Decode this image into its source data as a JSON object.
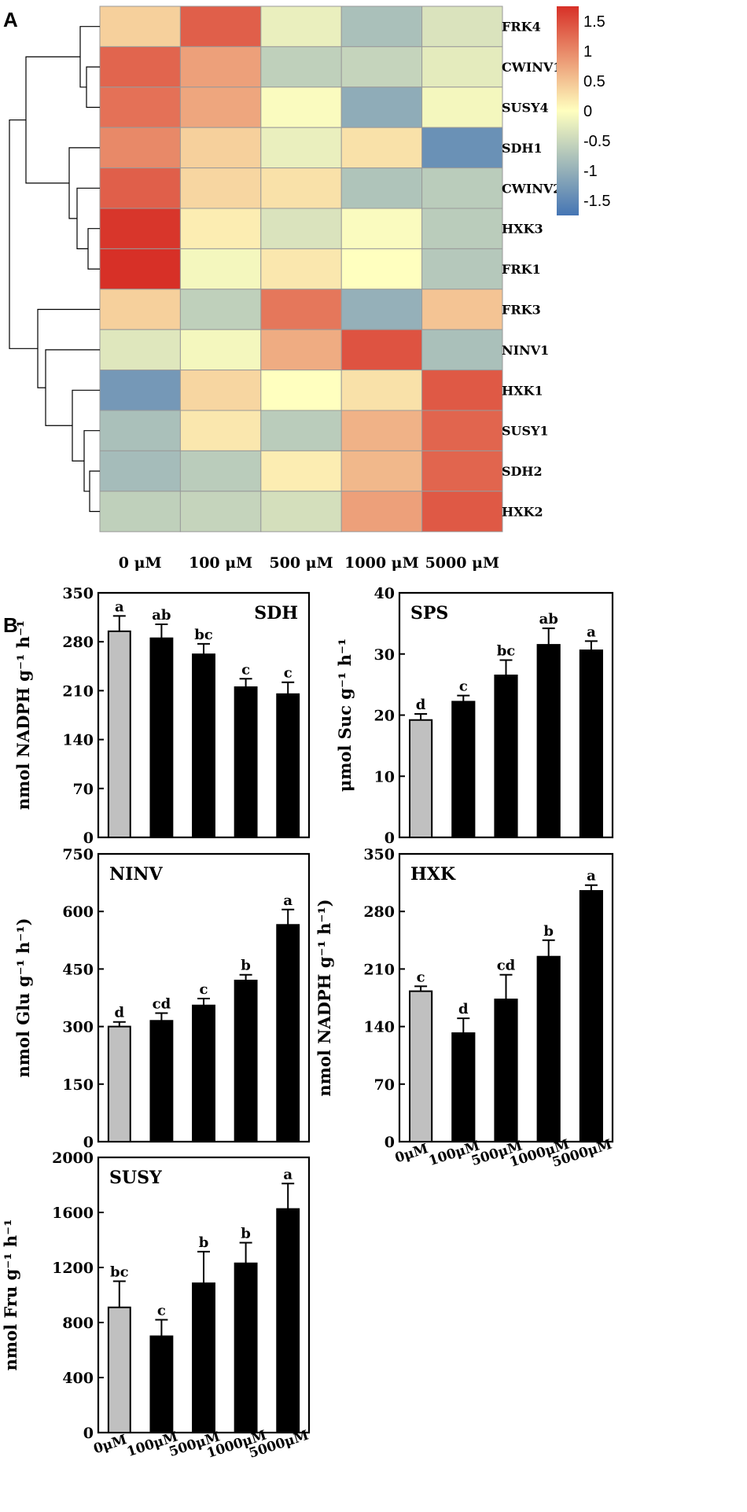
{
  "panel_labels": {
    "a": "A",
    "b": "B"
  },
  "chart_data": [
    {
      "type": "heatmap",
      "columns": [
        "0 μM",
        "100 μM",
        "500 μM",
        "1000 μM",
        "5000 μM"
      ],
      "rows": [
        "FRK4",
        "CWINV1",
        "SUSY4",
        "SDH1",
        "CWINV2",
        "HXK3",
        "FRK1",
        "FRK3",
        "NINV1",
        "HXK1",
        "SUSY1",
        "SDH2",
        "HXK2"
      ],
      "values": [
        [
          0.4,
          1.35,
          -0.2,
          -0.8,
          -0.35
        ],
        [
          1.3,
          0.8,
          -0.6,
          -0.55,
          -0.25
        ],
        [
          1.2,
          0.75,
          -0.05,
          -1.05,
          -0.1
        ],
        [
          1.0,
          0.4,
          -0.2,
          0.25,
          -1.4
        ],
        [
          1.35,
          0.35,
          0.25,
          -0.75,
          -0.65
        ],
        [
          1.7,
          0.15,
          -0.35,
          -0.05,
          -0.65
        ],
        [
          1.75,
          -0.1,
          0.2,
          0.0,
          -0.7
        ],
        [
          0.4,
          -0.6,
          1.15,
          -1.0,
          0.5
        ],
        [
          -0.3,
          -0.1,
          0.7,
          1.45,
          -0.8
        ],
        [
          -1.3,
          0.35,
          0.0,
          0.25,
          1.4
        ],
        [
          -0.8,
          0.2,
          -0.65,
          0.65,
          1.3
        ],
        [
          -0.85,
          -0.65,
          0.15,
          0.6,
          1.3
        ],
        [
          -0.6,
          -0.55,
          -0.4,
          0.8,
          1.4
        ]
      ],
      "colorbar": {
        "ticks": [
          "1.5",
          "1",
          "0.5",
          "0",
          "-0.5",
          "-1",
          "-1.5"
        ],
        "tick_values": [
          1.5,
          1,
          0.5,
          0,
          -0.5,
          -1,
          -1.5
        ],
        "range": [
          -1.75,
          1.75
        ]
      },
      "colors": {
        "low": "#4575b4",
        "mid": "#ffffbf",
        "high": "#d73027",
        "grid": "#9a9a9a"
      }
    },
    {
      "type": "bar",
      "title": "SDH",
      "ylabel": "nmol NADPH g⁻¹ h⁻¹",
      "categories": [
        "0μM",
        "100μM",
        "500μM",
        "1000μM",
        "5000μM"
      ],
      "values": [
        295,
        285,
        262,
        215,
        205
      ],
      "errors": [
        22,
        20,
        15,
        12,
        17
      ],
      "significance": [
        "a",
        "ab",
        "bc",
        "c",
        "c"
      ],
      "ylim": [
        0,
        350
      ],
      "yticks": [
        "0",
        "70",
        "140",
        "210",
        "280",
        "350"
      ],
      "show_xlabels": false
    },
    {
      "type": "bar",
      "title": "SPS",
      "ylabel": "μmol Suc g⁻¹ h⁻¹",
      "categories": [
        "0μM",
        "100μM",
        "500μM",
        "1000μM",
        "5000μM"
      ],
      "values": [
        19.2,
        22.2,
        26.5,
        31.5,
        30.6
      ],
      "errors": [
        1.0,
        1.0,
        2.5,
        2.7,
        1.5
      ],
      "significance": [
        "d",
        "c",
        "bc",
        "ab",
        "a"
      ],
      "ylim": [
        0,
        40
      ],
      "yticks": [
        "0",
        "10",
        "20",
        "30",
        "40"
      ],
      "show_xlabels": false
    },
    {
      "type": "bar",
      "title": "NINV",
      "ylabel": "nmol Glu g⁻¹ h⁻¹)",
      "categories": [
        "0μM",
        "100μM",
        "500μM",
        "1000μM",
        "5000μM"
      ],
      "values": [
        300,
        315,
        355,
        420,
        565
      ],
      "errors": [
        12,
        20,
        18,
        15,
        40
      ],
      "significance": [
        "d",
        "cd",
        "c",
        "b",
        "a"
      ],
      "ylim": [
        0,
        750
      ],
      "yticks": [
        "0",
        "150",
        "300",
        "450",
        "600",
        "750"
      ],
      "show_xlabels": false
    },
    {
      "type": "bar",
      "title": "HXK",
      "ylabel": "nmol NADPH g⁻¹ h⁻¹)",
      "categories": [
        "0μM",
        "100μM",
        "500μM",
        "1000μM",
        "5000μM"
      ],
      "values": [
        183,
        132,
        173,
        225,
        305
      ],
      "errors": [
        6,
        18,
        30,
        20,
        7
      ],
      "significance": [
        "c",
        "d",
        "cd",
        "b",
        "a"
      ],
      "ylim": [
        0,
        350
      ],
      "yticks": [
        "0",
        "70",
        "140",
        "210",
        "280",
        "350"
      ],
      "show_xlabels": true
    },
    {
      "type": "bar",
      "title": "SUSY",
      "ylabel": "nmol Fru g⁻¹ h⁻¹",
      "categories": [
        "0μM",
        "100μM",
        "500μM",
        "1000μM",
        "5000μM"
      ],
      "values": [
        910,
        700,
        1085,
        1230,
        1625
      ],
      "errors": [
        190,
        120,
        230,
        150,
        185
      ],
      "significance": [
        "bc",
        "c",
        "b",
        "b",
        "a"
      ],
      "ylim": [
        0,
        2000
      ],
      "yticks": [
        "0",
        "400",
        "800",
        "1200",
        "1600",
        "2000"
      ],
      "show_xlabels": true
    }
  ],
  "bar_colors": {
    "control": "#c0c0c0",
    "treatment": "#000000"
  }
}
